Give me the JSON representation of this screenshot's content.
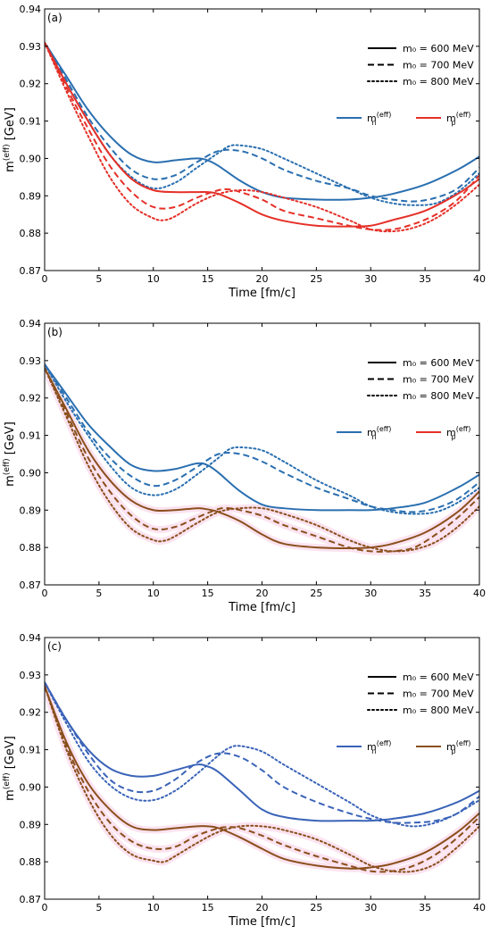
{
  "colors": {
    "neutron": "#2a6fb0",
    "proton": "#e53028",
    "proton_alt": "#8a4f1c",
    "neutron_alt": "#3a63b8",
    "band": "#fbe3f0"
  },
  "linestyle_legend": [
    {
      "label": "m₀ = 600 MeV",
      "style": "solid"
    },
    {
      "label": "m₀ = 700 MeV",
      "style": "dashed"
    },
    {
      "label": "m₀ = 800 MeV",
      "style": "dotted"
    }
  ],
  "chart_data": [
    {
      "type": "line",
      "panel_label": "(a)",
      "xlabel": "Time [fm/c]",
      "ylabel_base": "m",
      "ylabel_sup": "(eff)",
      "ylabel_unit": " [GeV]",
      "xlim": [
        0,
        40
      ],
      "ylim": [
        0.87,
        0.94
      ],
      "xticks": [
        0,
        5,
        10,
        15,
        20,
        25,
        30,
        35,
        40
      ],
      "yticks": [
        "0.87",
        "0.88",
        "0.89",
        "0.90",
        "0.91",
        "0.92",
        "0.93",
        "0.94"
      ],
      "grid": false,
      "legend_placement": "top-right",
      "species_legend": [
        {
          "base": "m",
          "sub": "n",
          "sup": "(eff)",
          "color_key": "neutron"
        },
        {
          "base": "m",
          "sub": "p",
          "sup": "(eff)",
          "color_key": "proton"
        }
      ],
      "series": [
        {
          "species": "n",
          "m0": 600,
          "color_key": "neutron",
          "x": [
            0,
            2,
            4,
            6,
            8,
            10,
            12,
            14,
            15,
            16,
            18,
            20,
            22,
            25,
            28,
            30,
            32,
            35,
            38,
            40
          ],
          "y": [
            0.931,
            0.922,
            0.913,
            0.906,
            0.901,
            0.899,
            0.8995,
            0.9,
            0.8995,
            0.898,
            0.894,
            0.891,
            0.8895,
            0.889,
            0.889,
            0.8895,
            0.8905,
            0.893,
            0.897,
            0.9005
          ]
        },
        {
          "species": "n",
          "m0": 700,
          "color_key": "neutron",
          "x": [
            0,
            2,
            4,
            6,
            8,
            10,
            12,
            14,
            16,
            18,
            20,
            22,
            25,
            28,
            30,
            32,
            34,
            36,
            38,
            40
          ],
          "y": [
            0.931,
            0.921,
            0.911,
            0.903,
            0.897,
            0.8945,
            0.8955,
            0.899,
            0.902,
            0.902,
            0.9,
            0.897,
            0.894,
            0.892,
            0.89,
            0.889,
            0.8885,
            0.8895,
            0.892,
            0.8975
          ]
        },
        {
          "species": "n",
          "m0": 800,
          "color_key": "neutron",
          "x": [
            0,
            2,
            4,
            6,
            8,
            10,
            12,
            14,
            16,
            17,
            18,
            20,
            22,
            25,
            28,
            30,
            32,
            34,
            36,
            38,
            40
          ],
          "y": [
            0.931,
            0.92,
            0.91,
            0.901,
            0.895,
            0.892,
            0.8935,
            0.8975,
            0.9015,
            0.9033,
            0.9035,
            0.9025,
            0.9,
            0.896,
            0.892,
            0.8895,
            0.888,
            0.8875,
            0.888,
            0.891,
            0.896
          ]
        },
        {
          "species": "p",
          "m0": 600,
          "color_key": "proton",
          "x": [
            0,
            2,
            4,
            6,
            8,
            10,
            12,
            14,
            15,
            16,
            18,
            20,
            22,
            25,
            28,
            30,
            32,
            35,
            38,
            40
          ],
          "y": [
            0.931,
            0.92,
            0.91,
            0.901,
            0.8945,
            0.8915,
            0.891,
            0.891,
            0.891,
            0.8905,
            0.888,
            0.885,
            0.8833,
            0.882,
            0.8818,
            0.882,
            0.8835,
            0.886,
            0.8905,
            0.8945
          ]
        },
        {
          "species": "p",
          "m0": 700,
          "color_key": "proton",
          "x": [
            0,
            2,
            4,
            6,
            8,
            10,
            12,
            14,
            16,
            17,
            18,
            20,
            22,
            25,
            28,
            30,
            32,
            34,
            36,
            38,
            40
          ],
          "y": [
            0.931,
            0.919,
            0.908,
            0.898,
            0.891,
            0.887,
            0.887,
            0.8895,
            0.8915,
            0.8917,
            0.891,
            0.889,
            0.886,
            0.884,
            0.882,
            0.881,
            0.881,
            0.8825,
            0.885,
            0.889,
            0.8955
          ]
        },
        {
          "species": "p",
          "m0": 800,
          "color_key": "proton",
          "x": [
            0,
            2,
            4,
            6,
            8,
            10,
            11,
            12,
            14,
            16,
            18,
            20,
            22,
            25,
            28,
            30,
            32,
            34,
            36,
            38,
            40
          ],
          "y": [
            0.931,
            0.918,
            0.906,
            0.895,
            0.8875,
            0.884,
            0.8835,
            0.8845,
            0.888,
            0.8905,
            0.8915,
            0.891,
            0.8895,
            0.887,
            0.8835,
            0.881,
            0.8805,
            0.8815,
            0.884,
            0.888,
            0.893
          ]
        }
      ]
    },
    {
      "type": "line",
      "panel_label": "(b)",
      "xlabel": "Time [fm/c]",
      "ylabel_base": "m",
      "ylabel_sup": "(eff)",
      "ylabel_unit": " [GeV]",
      "xlim": [
        0,
        40
      ],
      "ylim": [
        0.87,
        0.94
      ],
      "xticks": [
        0,
        5,
        10,
        15,
        20,
        25,
        30,
        35,
        40
      ],
      "yticks": [
        "0.87",
        "0.88",
        "0.89",
        "0.90",
        "0.91",
        "0.92",
        "0.93",
        "0.94"
      ],
      "grid": false,
      "legend_placement": "top-right",
      "species_legend": [
        {
          "base": "m",
          "sub": "n",
          "sup": "(eff)",
          "color_key": "neutron"
        },
        {
          "base": "m",
          "sub": "p",
          "sup": "(eff)",
          "color_key": "proton"
        }
      ],
      "series": [
        {
          "species": "n",
          "m0": 600,
          "color_key": "neutron",
          "x": [
            0,
            2,
            4,
            6,
            8,
            10,
            12,
            14,
            15,
            16,
            18,
            20,
            22,
            25,
            28,
            30,
            32,
            35,
            38,
            40
          ],
          "y": [
            0.929,
            0.921,
            0.913,
            0.907,
            0.902,
            0.9005,
            0.901,
            0.9025,
            0.902,
            0.9,
            0.895,
            0.8915,
            0.8905,
            0.89,
            0.89,
            0.89,
            0.8905,
            0.892,
            0.896,
            0.8995
          ]
        },
        {
          "species": "n",
          "m0": 700,
          "color_key": "neutron",
          "x": [
            0,
            2,
            4,
            6,
            8,
            10,
            12,
            14,
            16,
            18,
            20,
            22,
            25,
            28,
            30,
            32,
            34,
            36,
            38,
            40
          ],
          "y": [
            0.929,
            0.92,
            0.911,
            0.904,
            0.899,
            0.8965,
            0.898,
            0.9015,
            0.905,
            0.905,
            0.903,
            0.9,
            0.896,
            0.893,
            0.891,
            0.89,
            0.8895,
            0.8905,
            0.893,
            0.8975
          ]
        },
        {
          "species": "n",
          "m0": 800,
          "color_key": "neutron",
          "x": [
            0,
            2,
            4,
            6,
            8,
            10,
            12,
            14,
            16,
            17,
            18,
            20,
            22,
            25,
            28,
            30,
            32,
            34,
            36,
            38,
            40
          ],
          "y": [
            0.929,
            0.919,
            0.91,
            0.902,
            0.896,
            0.894,
            0.8955,
            0.8995,
            0.904,
            0.9063,
            0.9068,
            0.906,
            0.903,
            0.898,
            0.894,
            0.891,
            0.8895,
            0.889,
            0.8895,
            0.892,
            0.896
          ]
        },
        {
          "species": "p",
          "m0": 600,
          "color_key": "proton_alt",
          "x": [
            0,
            2,
            4,
            6,
            8,
            10,
            12,
            14,
            15,
            16,
            18,
            20,
            22,
            25,
            28,
            30,
            32,
            35,
            38,
            40
          ],
          "y": [
            0.928,
            0.917,
            0.906,
            0.898,
            0.8925,
            0.89,
            0.89,
            0.8905,
            0.8902,
            0.8895,
            0.887,
            0.8835,
            0.881,
            0.88,
            0.8798,
            0.88,
            0.881,
            0.884,
            0.8895,
            0.895
          ]
        },
        {
          "species": "p",
          "m0": 700,
          "color_key": "proton_alt",
          "x": [
            0,
            2,
            4,
            6,
            8,
            10,
            12,
            14,
            16,
            17,
            18,
            20,
            22,
            25,
            28,
            30,
            32,
            34,
            36,
            38,
            40
          ],
          "y": [
            0.928,
            0.916,
            0.904,
            0.895,
            0.8885,
            0.885,
            0.8855,
            0.888,
            0.8903,
            0.8905,
            0.89,
            0.8885,
            0.886,
            0.883,
            0.88,
            0.879,
            0.879,
            0.88,
            0.8835,
            0.888,
            0.8935
          ]
        },
        {
          "species": "p",
          "m0": 800,
          "color_key": "proton_alt",
          "x": [
            0,
            2,
            4,
            6,
            8,
            10,
            11,
            12,
            14,
            16,
            18,
            20,
            22,
            25,
            28,
            30,
            32,
            34,
            36,
            38,
            40
          ],
          "y": [
            0.928,
            0.915,
            0.902,
            0.892,
            0.885,
            0.882,
            0.8818,
            0.883,
            0.8865,
            0.8895,
            0.8905,
            0.8905,
            0.889,
            0.886,
            0.882,
            0.88,
            0.879,
            0.8795,
            0.8815,
            0.8855,
            0.891
          ]
        }
      ]
    },
    {
      "type": "line",
      "panel_label": "(c)",
      "xlabel": "Time [fm/c]",
      "ylabel_base": "m",
      "ylabel_sup": "(eff)",
      "ylabel_unit": " [GeV]",
      "xlim": [
        0,
        40
      ],
      "ylim": [
        0.87,
        0.94
      ],
      "xticks": [
        0,
        5,
        10,
        15,
        20,
        25,
        30,
        35,
        40
      ],
      "yticks": [
        "0.87",
        "0.88",
        "0.89",
        "0.90",
        "0.91",
        "0.92",
        "0.93",
        "0.94"
      ],
      "grid": false,
      "legend_placement": "top-right",
      "species_legend": [
        {
          "base": "m",
          "sub": "n",
          "sup": "(eff)",
          "color_key": "neutron_alt"
        },
        {
          "base": "m",
          "sub": "p",
          "sup": "(eff)",
          "color_key": "proton_alt"
        }
      ],
      "series": [
        {
          "species": "n",
          "m0": 600,
          "color_key": "neutron_alt",
          "x": [
            0,
            2,
            4,
            6,
            8,
            10,
            12,
            14,
            15,
            16,
            18,
            20,
            22,
            25,
            28,
            30,
            32,
            35,
            38,
            40
          ],
          "y": [
            0.928,
            0.918,
            0.91,
            0.905,
            0.903,
            0.903,
            0.9045,
            0.906,
            0.9055,
            0.904,
            0.899,
            0.894,
            0.892,
            0.891,
            0.891,
            0.891,
            0.8915,
            0.893,
            0.896,
            0.899
          ]
        },
        {
          "species": "n",
          "m0": 700,
          "color_key": "neutron_alt",
          "x": [
            0,
            2,
            4,
            6,
            8,
            10,
            12,
            14,
            16,
            18,
            20,
            22,
            25,
            28,
            30,
            32,
            34,
            36,
            38,
            40
          ],
          "y": [
            0.928,
            0.918,
            0.909,
            0.902,
            0.899,
            0.899,
            0.902,
            0.9065,
            0.909,
            0.908,
            0.9045,
            0.9,
            0.896,
            0.893,
            0.8915,
            0.8905,
            0.8905,
            0.891,
            0.893,
            0.8975
          ]
        },
        {
          "species": "n",
          "m0": 800,
          "color_key": "neutron_alt",
          "x": [
            0,
            2,
            4,
            6,
            8,
            10,
            12,
            14,
            16,
            17,
            18,
            20,
            22,
            25,
            28,
            30,
            32,
            34,
            36,
            38,
            40
          ],
          "y": [
            0.928,
            0.917,
            0.907,
            0.9005,
            0.897,
            0.8965,
            0.899,
            0.9035,
            0.9085,
            0.9105,
            0.911,
            0.9095,
            0.906,
            0.901,
            0.896,
            0.8925,
            0.8905,
            0.8895,
            0.8905,
            0.893,
            0.8965
          ]
        },
        {
          "species": "p",
          "m0": 600,
          "color_key": "proton_alt",
          "x": [
            0,
            2,
            4,
            6,
            8,
            10,
            12,
            14,
            15,
            16,
            18,
            20,
            22,
            25,
            28,
            30,
            32,
            35,
            38,
            40
          ],
          "y": [
            0.927,
            0.912,
            0.901,
            0.894,
            0.8895,
            0.8885,
            0.889,
            0.8895,
            0.8895,
            0.889,
            0.8865,
            0.8835,
            0.8808,
            0.879,
            0.8782,
            0.8785,
            0.8795,
            0.8825,
            0.888,
            0.893
          ]
        },
        {
          "species": "p",
          "m0": 700,
          "color_key": "proton_alt",
          "x": [
            0,
            2,
            4,
            6,
            8,
            10,
            12,
            14,
            16,
            17,
            18,
            20,
            22,
            25,
            28,
            30,
            32,
            34,
            36,
            38,
            40
          ],
          "y": [
            0.927,
            0.911,
            0.899,
            0.8905,
            0.8855,
            0.8835,
            0.884,
            0.887,
            0.889,
            0.8893,
            0.889,
            0.887,
            0.8845,
            0.8815,
            0.879,
            0.8775,
            0.8775,
            0.879,
            0.882,
            0.8865,
            0.892
          ]
        },
        {
          "species": "p",
          "m0": 800,
          "color_key": "proton_alt",
          "x": [
            0,
            2,
            4,
            6,
            8,
            10,
            11,
            12,
            14,
            16,
            18,
            20,
            22,
            25,
            28,
            30,
            32,
            34,
            36,
            38,
            40
          ],
          "y": [
            0.927,
            0.91,
            0.897,
            0.8875,
            0.882,
            0.8803,
            0.88,
            0.8815,
            0.885,
            0.888,
            0.8895,
            0.8895,
            0.8885,
            0.886,
            0.882,
            0.879,
            0.8775,
            0.8775,
            0.8795,
            0.884,
            0.8895
          ]
        }
      ]
    }
  ]
}
